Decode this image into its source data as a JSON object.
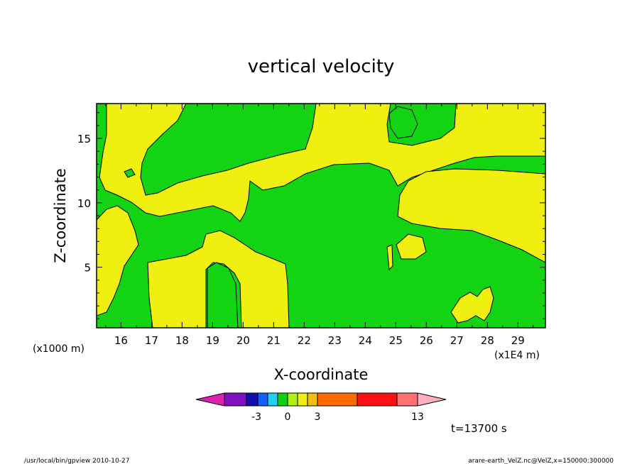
{
  "chart_data": {
    "type": "heatmap",
    "title": "vertical velocity",
    "xlabel": "X-coordinate",
    "ylabel": "Z-coordinate",
    "x_unit_left": "(x1000 m)",
    "x_unit_right": "(x1E4 m)",
    "xlim": [
      15.2,
      29.9
    ],
    "ylim": [
      0.3,
      17.7
    ],
    "x_ticks": [
      16,
      17,
      18,
      19,
      20,
      21,
      22,
      23,
      24,
      25,
      26,
      27,
      28,
      29
    ],
    "x_tick_labels": [
      "16",
      "17",
      "18",
      "19",
      "20",
      "21",
      "22",
      "23",
      "24",
      "25",
      "26",
      "27",
      "28",
      "29"
    ],
    "y_ticks": [
      5,
      10,
      15
    ],
    "y_tick_labels": [
      "5",
      "10",
      "15"
    ],
    "time_label": "t=13700 s",
    "colorbar": {
      "colors": [
        "#e020b0",
        "#8010c0",
        "#1010b0",
        "#1060ff",
        "#20d0f0",
        "#10d010",
        "#b0f010",
        "#f0f010",
        "#f0c010",
        "#ff6a00",
        "#ff1010",
        "#ff7070",
        "#ffb0c0"
      ],
      "labels": [
        "-3",
        "0",
        "3",
        "13"
      ]
    },
    "regions": {
      "background": "#12d412",
      "positive_fill": "#f0f010",
      "contour_color": "#000000"
    }
  },
  "footer": {
    "left": "/usr/local/bin/gpview  2010-10-27",
    "right": "arare-earth_VelZ.nc@VelZ,x=150000:300000"
  }
}
